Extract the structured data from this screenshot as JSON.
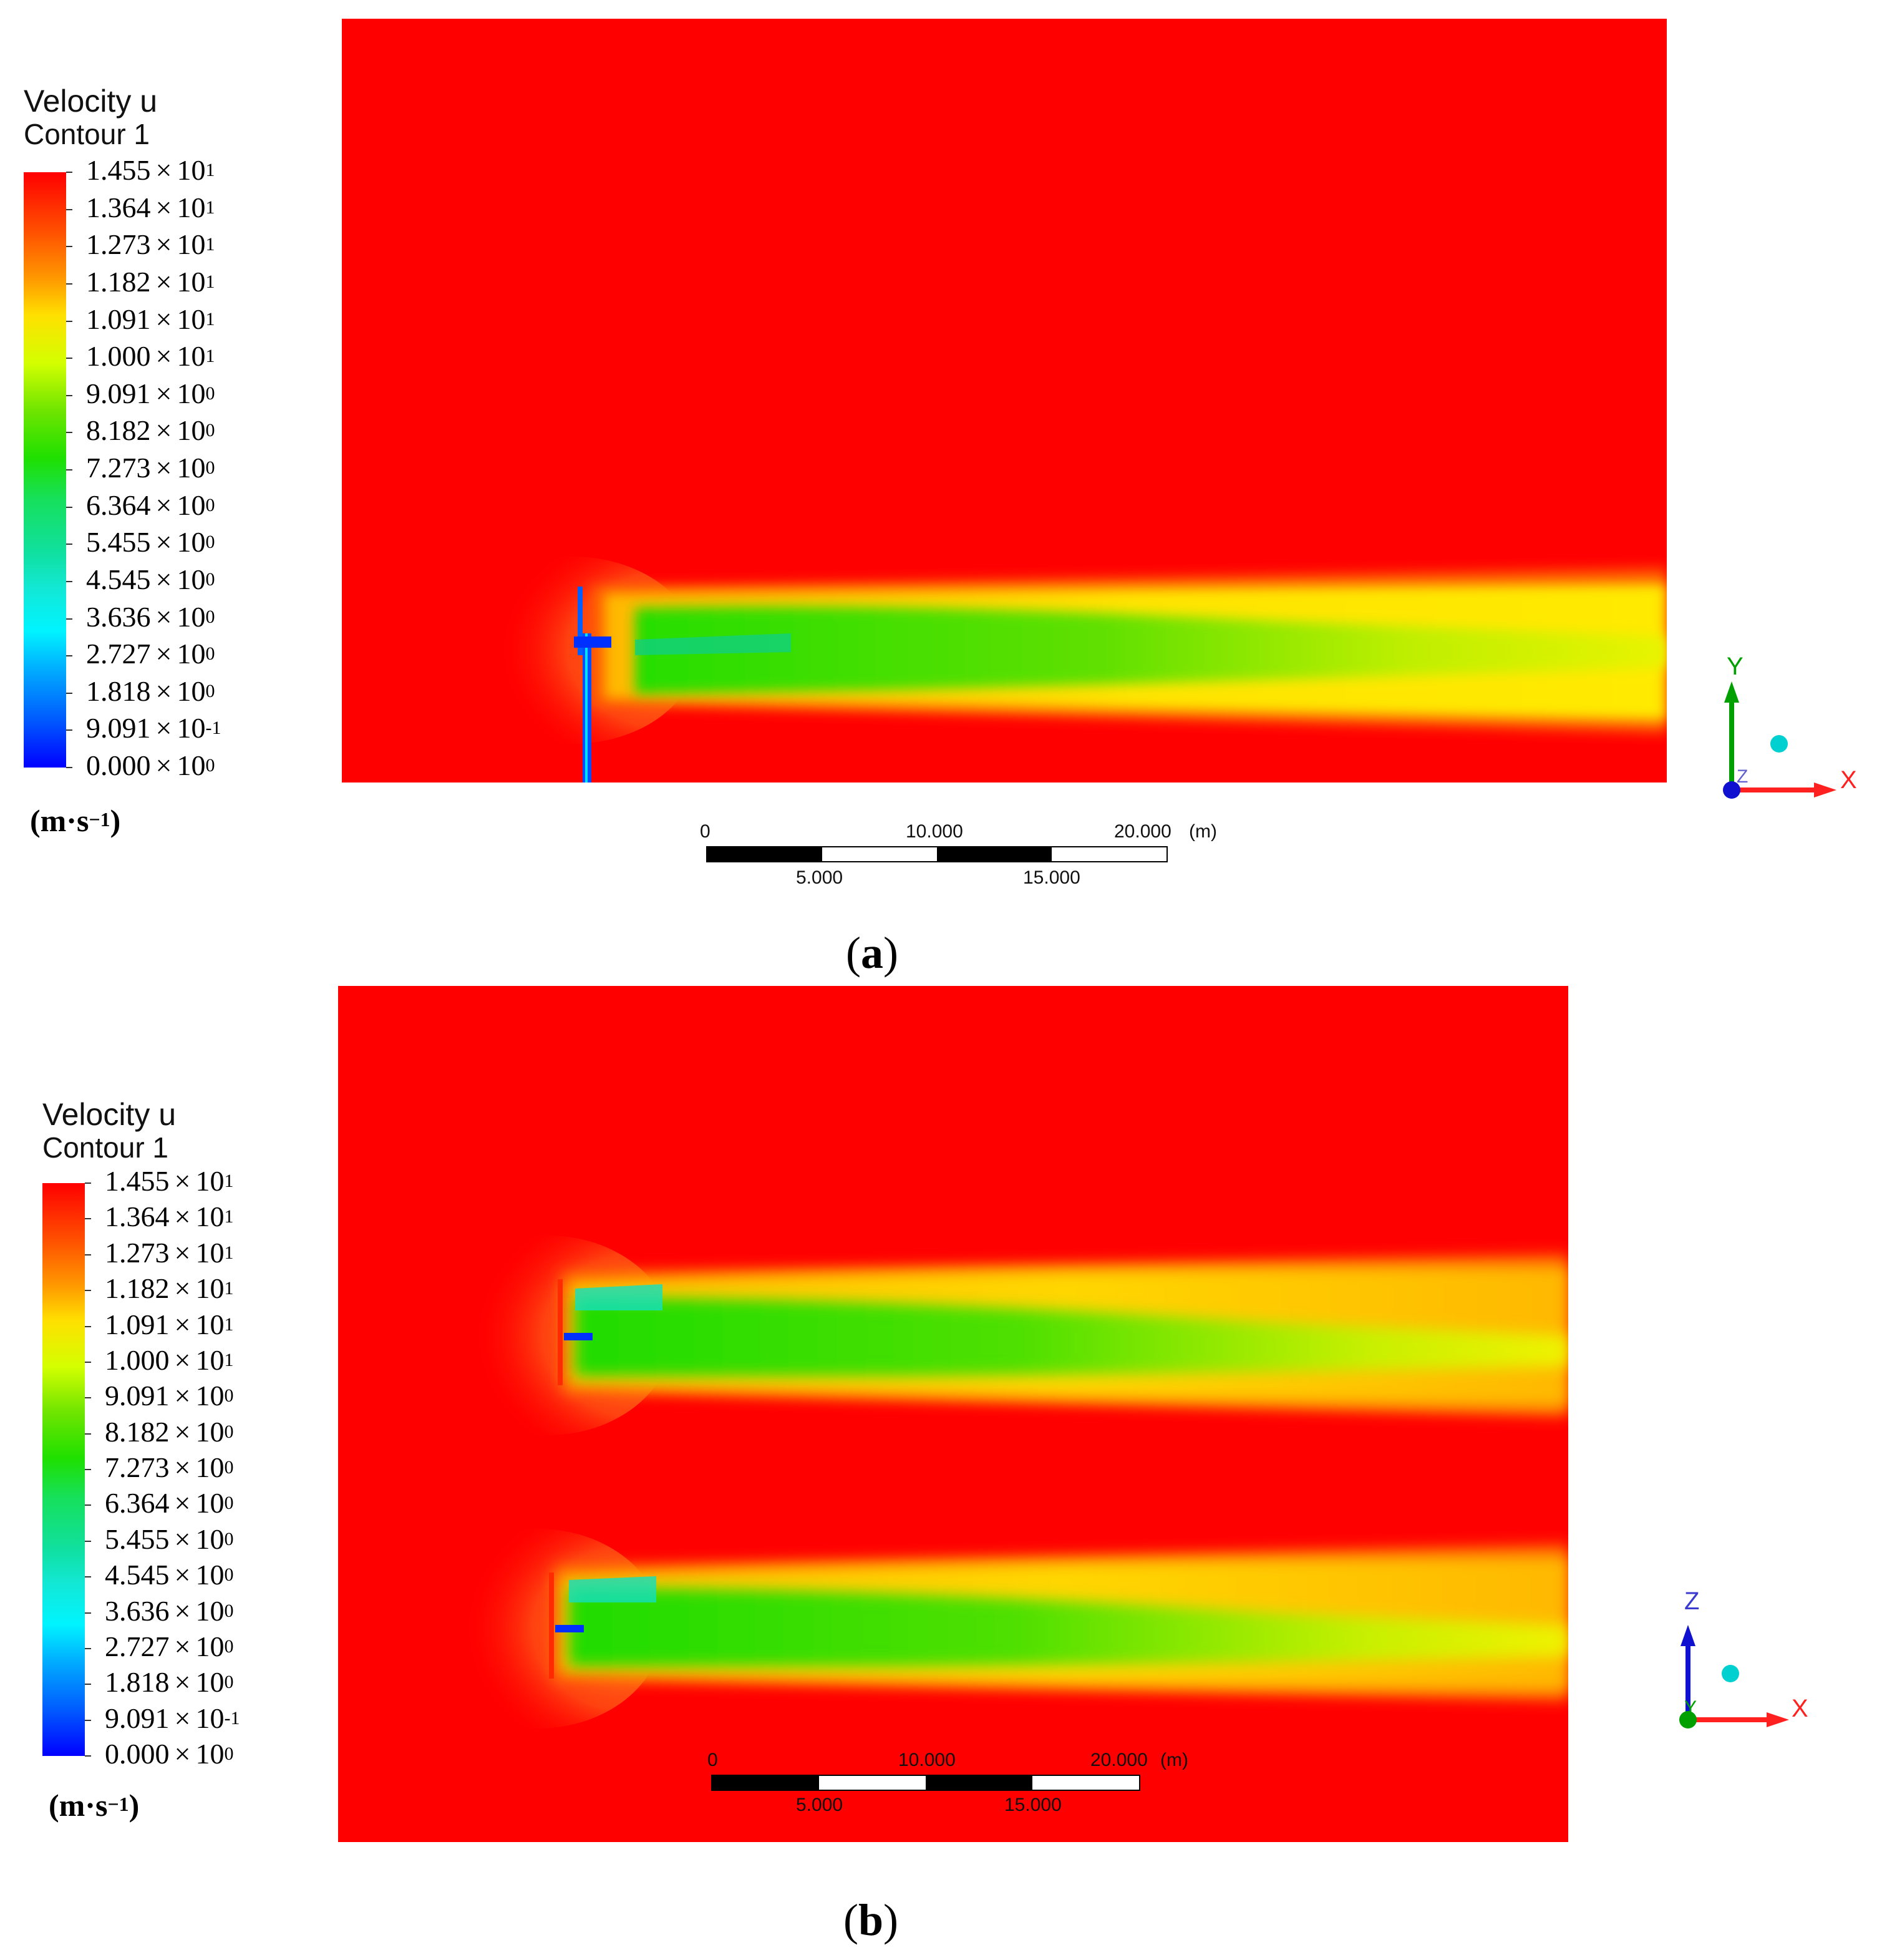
{
  "panels": [
    {
      "id": "a",
      "legend": {
        "title": "Velocity u",
        "subtitle": "Contour 1",
        "ticks": [
          {
            "m": "1.455",
            "e": "1"
          },
          {
            "m": "1.364",
            "e": "1"
          },
          {
            "m": "1.273",
            "e": "1"
          },
          {
            "m": "1.182",
            "e": "1"
          },
          {
            "m": "1.091",
            "e": "1"
          },
          {
            "m": "1.000",
            "e": "1"
          },
          {
            "m": "9.091",
            "e": "0"
          },
          {
            "m": "8.182",
            "e": "0"
          },
          {
            "m": "7.273",
            "e": "0"
          },
          {
            "m": "6.364",
            "e": "0"
          },
          {
            "m": "5.455",
            "e": "0"
          },
          {
            "m": "4.545",
            "e": "0"
          },
          {
            "m": "3.636",
            "e": "0"
          },
          {
            "m": "2.727",
            "e": "0"
          },
          {
            "m": "1.818",
            "e": "0"
          },
          {
            "m": "9.091",
            "e": "-1"
          },
          {
            "m": "0.000",
            "e": "0"
          }
        ],
        "unit_base": "(m·s",
        "unit_exp": "−1",
        "unit_close": ")"
      },
      "scale_bar": {
        "top_labels": [
          "0",
          "10.000",
          "20.000",
          "(m)"
        ],
        "bottom_labels": [
          "5.000",
          "15.000"
        ]
      },
      "axes": {
        "vertical": "Y",
        "horizontal": "X",
        "depth": "Z"
      },
      "caption": "a"
    },
    {
      "id": "b",
      "legend": {
        "title": "Velocity u",
        "subtitle": "Contour 1",
        "ticks": [
          {
            "m": "1.455",
            "e": "1"
          },
          {
            "m": "1.364",
            "e": "1"
          },
          {
            "m": "1.273",
            "e": "1"
          },
          {
            "m": "1.182",
            "e": "1"
          },
          {
            "m": "1.091",
            "e": "1"
          },
          {
            "m": "1.000",
            "e": "1"
          },
          {
            "m": "9.091",
            "e": "0"
          },
          {
            "m": "8.182",
            "e": "0"
          },
          {
            "m": "7.273",
            "e": "0"
          },
          {
            "m": "6.364",
            "e": "0"
          },
          {
            "m": "5.455",
            "e": "0"
          },
          {
            "m": "4.545",
            "e": "0"
          },
          {
            "m": "3.636",
            "e": "0"
          },
          {
            "m": "2.727",
            "e": "0"
          },
          {
            "m": "1.818",
            "e": "0"
          },
          {
            "m": "9.091",
            "e": "-1"
          },
          {
            "m": "0.000",
            "e": "0"
          }
        ],
        "unit_base": "(m·s",
        "unit_exp": "−1",
        "unit_close": ")"
      },
      "scale_bar": {
        "top_labels": [
          "0",
          "10.000",
          "20.000",
          "(m)"
        ],
        "bottom_labels": [
          "5.000",
          "15.000"
        ]
      },
      "axes": {
        "vertical": "Z",
        "horizontal": "X",
        "depth": "Y"
      },
      "caption": "b"
    }
  ],
  "legend_common": {
    "times_sign": "×",
    "base": "10"
  },
  "colors": {
    "field": "#ff0000",
    "x_axis": "#ff2020",
    "y_axis_a": "#00a000",
    "z_axis_b": "#1010d0",
    "origin_a": "#1010d0",
    "origin_b": "#00a000",
    "sphere": "#00d0d0"
  }
}
